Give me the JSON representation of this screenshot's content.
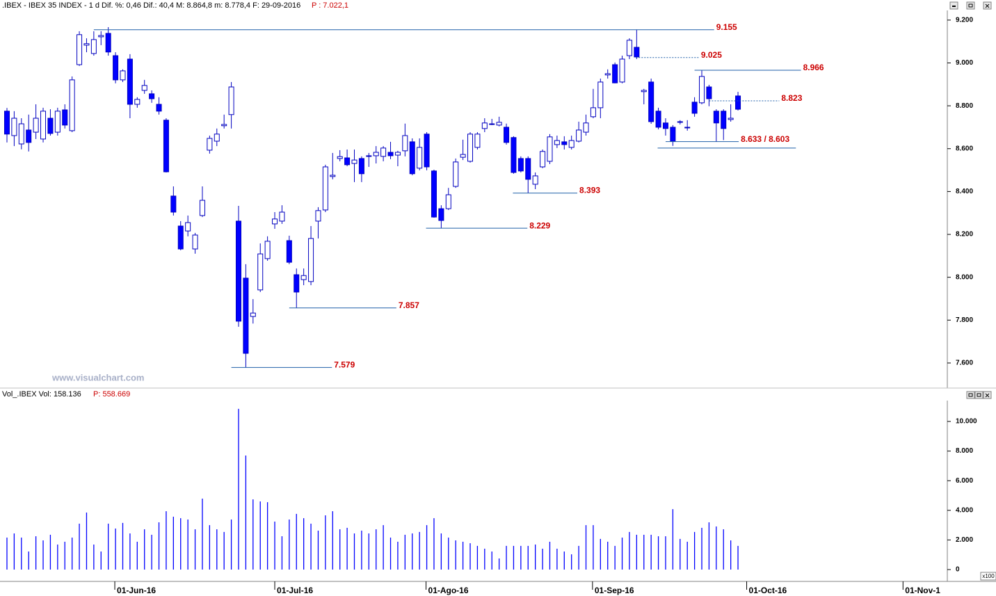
{
  "header": {
    "title": ".IBEX - IBEX 35 INDEX - 1 d Dif. %: 0,46  Dif.: 40,4  M: 8.864,8  m: 8.778,4  F: 29-09-2016",
    "price": "P : 7.022,1"
  },
  "volume_header": {
    "title": "Vol_.IBEX Vol: 158.136",
    "price": "P: 558.669"
  },
  "watermark": "www.visualchart.com",
  "volume_unit": "x100",
  "chart_data": [
    {
      "type": "candlestick",
      "up_color": "#ffffff",
      "down_color": "#0000ff",
      "color": "#0000c0",
      "level_color": "#1f5fa8",
      "x": [
        0,
        1,
        2,
        3,
        4,
        5,
        6,
        7,
        8,
        9,
        10,
        11,
        12,
        13,
        14,
        15,
        16,
        17,
        18,
        19,
        20,
        21,
        22,
        23,
        24,
        25,
        26,
        27,
        28,
        29,
        30,
        31,
        32,
        33,
        34,
        35,
        36,
        37,
        38,
        39,
        40,
        41,
        42,
        43,
        44,
        45,
        46,
        47,
        48,
        49,
        50,
        51,
        52,
        53,
        54,
        55,
        56,
        57,
        58,
        59,
        60,
        61,
        62,
        63,
        64,
        65,
        66,
        67,
        68,
        69,
        70,
        71,
        72,
        73,
        74,
        75,
        76,
        77,
        78,
        79,
        80,
        81,
        82,
        83,
        84,
        85,
        86,
        87,
        88,
        89,
        90,
        91,
        92,
        93,
        94,
        95,
        96,
        97,
        98,
        99,
        100,
        101
      ],
      "open": [
        8775,
        8661,
        8622,
        8687,
        8677,
        8645,
        8742,
        8677,
        8781,
        8684,
        8992,
        9083,
        9044,
        9122,
        9138,
        9034,
        8921,
        9018,
        8807,
        8872,
        8856,
        8807,
        8733,
        8379,
        8239,
        8216,
        8132,
        8288,
        8593,
        8635,
        8707,
        8759,
        8262,
        7996,
        7817,
        7941,
        8087,
        8249,
        8262,
        8171,
        8012,
        7989,
        7980,
        8262,
        8314,
        8470,
        8554,
        8557,
        8531,
        8554,
        8564,
        8567,
        8564,
        8583,
        8570,
        8590,
        8632,
        8509,
        8668,
        8496,
        8320,
        8320,
        8424,
        8560,
        8541,
        8606,
        8694,
        8713,
        8710,
        8700,
        8652,
        8554,
        8554,
        8434,
        8515,
        8541,
        8619,
        8632,
        8606,
        8635,
        8677,
        8749,
        8791,
        8944,
        8992,
        8911,
        9034,
        9073,
        8866,
        8911,
        8775,
        8720,
        8700,
        8723,
        8700,
        8817,
        8814,
        8888,
        8775,
        8775,
        8736,
        8846
      ],
      "high": [
        8790,
        8775,
        8742,
        8759,
        8807,
        8791,
        8784,
        8791,
        8807,
        8937,
        9148,
        9115,
        9148,
        9148,
        9167,
        9050,
        8970,
        9041,
        8840,
        8921,
        8872,
        8840,
        8742,
        8424,
        8262,
        8288,
        8207,
        8424,
        8661,
        8694,
        8759,
        8911,
        8333,
        8061,
        7898,
        8158,
        8191,
        8304,
        8336,
        8194,
        8041,
        8041,
        8239,
        8327,
        8525,
        8580,
        8593,
        8596,
        8596,
        8564,
        8580,
        8612,
        8612,
        8632,
        8590,
        8717,
        8648,
        8648,
        8677,
        8502,
        8336,
        8417,
        8554,
        8642,
        8677,
        8677,
        8742,
        8739,
        8749,
        8717,
        8658,
        8564,
        8564,
        8489,
        8596,
        8668,
        8661,
        8658,
        8661,
        8726,
        8759,
        8879,
        8927,
        8970,
        9002,
        9034,
        9115,
        9155,
        8879,
        8927,
        8791,
        8742,
        8710,
        8733,
        8733,
        8840,
        8966,
        8898,
        8784,
        8784,
        8807,
        8865
      ],
      "low": [
        8629,
        8612,
        8597,
        8587,
        8645,
        8629,
        8661,
        8661,
        8694,
        8677,
        8986,
        9050,
        9034,
        9083,
        9034,
        8905,
        8911,
        8742,
        8791,
        8856,
        8814,
        8759,
        8489,
        8288,
        8126,
        8191,
        8110,
        8281,
        8577,
        8612,
        8694,
        8694,
        7769,
        7579,
        7784,
        7931,
        8077,
        8226,
        8249,
        8061,
        7857,
        7963,
        7963,
        8181,
        8304,
        8457,
        8541,
        8518,
        8444,
        8444,
        8515,
        8531,
        8541,
        8551,
        8518,
        8564,
        8476,
        8499,
        8499,
        8278,
        8229,
        8314,
        8417,
        8547,
        8535,
        8596,
        8677,
        8710,
        8704,
        8619,
        8483,
        8489,
        8393,
        8411,
        8509,
        8528,
        8603,
        8596,
        8596,
        8629,
        8661,
        8742,
        8742,
        8927,
        8905,
        8905,
        9018,
        9018,
        8807,
        8716,
        8690,
        8661,
        8613,
        8713,
        8684,
        8749,
        8807,
        8798,
        8633,
        8640,
        8726,
        8778
      ],
      "close": [
        8668,
        8742,
        8716,
        8629,
        8742,
        8775,
        8671,
        8775,
        8710,
        8921,
        9132,
        9090,
        9109,
        9128,
        9051,
        8921,
        8963,
        8807,
        8830,
        8895,
        8833,
        8775,
        8492,
        8304,
        8132,
        8255,
        8197,
        8359,
        8648,
        8668,
        8713,
        8888,
        7795,
        7645,
        7833,
        8109,
        8168,
        8272,
        8304,
        8070,
        7931,
        8008,
        8181,
        8311,
        8515,
        8476,
        8563,
        8525,
        8547,
        8483,
        8567,
        8583,
        8603,
        8567,
        8583,
        8661,
        8483,
        8606,
        8515,
        8281,
        8265,
        8385,
        8538,
        8573,
        8668,
        8668,
        8720,
        8716,
        8723,
        8629,
        8489,
        8496,
        8457,
        8473,
        8587,
        8655,
        8638,
        8619,
        8638,
        8687,
        8720,
        8791,
        8911,
        8950,
        8907,
        9018,
        9106,
        9028,
        8872,
        8726,
        8700,
        8694,
        8635,
        8726,
        8697,
        8765,
        8937,
        8833,
        8720,
        8694,
        8742,
        8784
      ],
      "xlim": [
        -0.96,
        129.92
      ],
      "xticks": [
        {
          "value": 14.9,
          "label": "01-Jun-16"
        },
        {
          "value": 37,
          "label": "01-Jul-16"
        },
        {
          "value": 57.9,
          "label": "01-Ago-16"
        },
        {
          "value": 80.9,
          "label": "01-Sep-16"
        },
        {
          "value": 102.2,
          "label": "01-Oct-16"
        },
        {
          "value": 123.8,
          "label": "01-Nov-1"
        }
      ],
      "ylim": [
        7483,
        9245
      ],
      "yticks": [
        {
          "value": 7600,
          "label": "7.600"
        },
        {
          "value": 7800,
          "label": "7.800"
        },
        {
          "value": 8000,
          "label": "8.000"
        },
        {
          "value": 8200,
          "label": "8.200"
        },
        {
          "value": 8400,
          "label": "8.400"
        },
        {
          "value": 8600,
          "label": "8.600"
        },
        {
          "value": 8800,
          "label": "8.800"
        },
        {
          "value": 9000,
          "label": "9.000"
        },
        {
          "value": 9200,
          "label": "9.200"
        }
      ],
      "levels": [
        {
          "value": 9155,
          "from": 12.0,
          "to": 97.7,
          "style": "solid",
          "label": "9.155"
        },
        {
          "value": 9025,
          "from": 86.9,
          "to": 95.6,
          "style": "dotted",
          "label": "9.025"
        },
        {
          "value": 8966,
          "from": 95.0,
          "to": 109.7,
          "style": "solid",
          "label": "8.966"
        },
        {
          "value": 8823,
          "from": 97.0,
          "to": 106.7,
          "style": "dotted",
          "label": "8.823"
        },
        {
          "value": 8633,
          "from": 91.0,
          "to": 101.1,
          "style": "solid",
          "label": "8.633 / 8.603"
        },
        {
          "value": 8603,
          "from": 89.9,
          "to": 109.0,
          "style": "solid"
        },
        {
          "value": 8393,
          "from": 69.9,
          "to": 78.8,
          "style": "solid",
          "label": "8.393"
        },
        {
          "value": 8229,
          "from": 57.9,
          "to": 71.9,
          "style": "solid",
          "label": "8.229"
        },
        {
          "value": 7857,
          "from": 39.0,
          "to": 53.8,
          "style": "solid",
          "label": "7.857"
        },
        {
          "value": 7579,
          "from": 31.0,
          "to": 44.9,
          "style": "solid",
          "label": "7.579"
        }
      ]
    },
    {
      "type": "bar",
      "color": "#0000ff",
      "x": [
        0,
        1,
        2,
        3,
        4,
        5,
        6,
        7,
        8,
        9,
        10,
        11,
        12,
        13,
        14,
        15,
        16,
        17,
        18,
        19,
        20,
        21,
        22,
        23,
        24,
        25,
        26,
        27,
        28,
        29,
        30,
        31,
        32,
        33,
        34,
        35,
        36,
        37,
        38,
        39,
        40,
        41,
        42,
        43,
        44,
        45,
        46,
        47,
        48,
        49,
        50,
        51,
        52,
        53,
        54,
        55,
        56,
        57,
        58,
        59,
        60,
        61,
        62,
        63,
        64,
        65,
        66,
        67,
        68,
        69,
        70,
        71,
        72,
        73,
        74,
        75,
        76,
        77,
        78,
        79,
        80,
        81,
        82,
        83,
        84,
        85,
        86,
        87,
        88,
        89,
        90,
        91,
        92,
        93,
        94,
        95,
        96,
        97,
        98,
        99,
        100,
        101
      ],
      "values": [
        2160,
        2440,
        2160,
        1220,
        2250,
        1970,
        2350,
        1690,
        1880,
        2160,
        3100,
        3850,
        1690,
        1220,
        3100,
        2770,
        3150,
        2440,
        1880,
        2720,
        2350,
        3190,
        3940,
        3570,
        3470,
        3380,
        2720,
        4790,
        3000,
        2720,
        2540,
        3380,
        10850,
        7700,
        4740,
        4600,
        4550,
        3240,
        2250,
        3380,
        3760,
        3470,
        3100,
        2630,
        3660,
        3940,
        2720,
        2820,
        2440,
        2630,
        2440,
        2720,
        3000,
        2160,
        1880,
        2350,
        2440,
        2540,
        3000,
        3470,
        2440,
        2160,
        1970,
        1880,
        1780,
        1600,
        1410,
        1220,
        750,
        1600,
        1600,
        1600,
        1600,
        1690,
        1410,
        1880,
        1410,
        1220,
        1030,
        1600,
        3000,
        3000,
        2070,
        1880,
        1600,
        2160,
        2540,
        2350,
        2350,
        2350,
        2250,
        2250,
        4080,
        2070,
        1880,
        2540,
        2820,
        3190,
        2910,
        2720,
        1970,
        1600
      ],
      "xlim": [
        -0.96,
        129.92
      ],
      "ylim": [
        -751,
        11315
      ],
      "yticks": [
        0,
        {
          "value": 2000,
          "label": "2.000"
        },
        {
          "value": 4000,
          "label": "4.000"
        },
        {
          "value": 6000,
          "label": "6.000"
        },
        {
          "value": 8000,
          "label": "8.000"
        },
        {
          "value": 10000,
          "label": "10.000"
        }
      ]
    }
  ]
}
